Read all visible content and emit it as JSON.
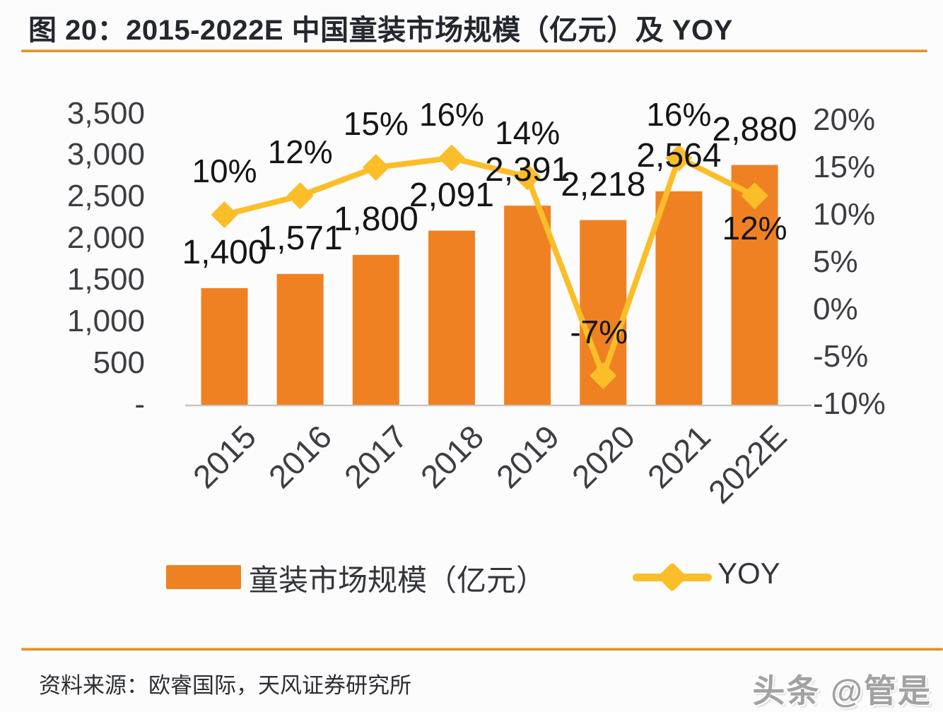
{
  "page": {
    "title": "图 20：2015-2022E 中国童装市场规模（亿元）及 YOY",
    "source": "资料来源：欧睿国际，天风证券研究所",
    "watermark": "头条 @管是"
  },
  "colors": {
    "bar": "#F08122",
    "line": "#FBBE28",
    "accent_rule": "#E0912C",
    "axis_text": "#3c3e42",
    "label_text": "#141517",
    "baseline": "#c6c6c6"
  },
  "chart_data": {
    "type": "bar",
    "subtype": "combo-bar-line-dual-axis",
    "title": "图 20：2015-2022E 中国童装市场规模（亿元）及 YOY",
    "categories": [
      "2015",
      "2016",
      "2017",
      "2018",
      "2019",
      "2020",
      "2021",
      "2022E"
    ],
    "series": [
      {
        "name": "童装市场规模（亿元）",
        "type": "bar",
        "axis": "left",
        "values": [
          1400,
          1571,
          1800,
          2091,
          2391,
          2218,
          2564,
          2880
        ],
        "labels": [
          "1,400",
          "1,571",
          "1,800",
          "2,091",
          "2,391",
          "2,218",
          "2,564",
          "2,880"
        ],
        "color": "#F08122"
      },
      {
        "name": "YOY",
        "type": "line",
        "axis": "right",
        "values": [
          10,
          12,
          15,
          16,
          14,
          -7,
          16,
          12
        ],
        "labels": [
          "10%",
          "12%",
          "15%",
          "16%",
          "14%",
          "-7%",
          "16%",
          "12%"
        ],
        "color": "#FBBE28",
        "marker": "diamond"
      }
    ],
    "left_axis": {
      "ticks": [
        "3,500",
        "3,000",
        "2,500",
        "2,000",
        "1,500",
        "1,000",
        "500",
        "-"
      ],
      "values": [
        3500,
        3000,
        2500,
        2000,
        1500,
        1000,
        500,
        0
      ],
      "min": 0,
      "max": 3500
    },
    "right_axis": {
      "ticks": [
        "20%",
        "15%",
        "10%",
        "5%",
        "0%",
        "-5%",
        "-10%"
      ],
      "values": [
        20,
        15,
        10,
        5,
        0,
        -5,
        -10
      ],
      "min": -10,
      "max": 20
    },
    "grid": false,
    "legend_position": "bottom",
    "legend": [
      {
        "label": "童装市场规模（亿元）",
        "swatch": "bar"
      },
      {
        "label": "YOY",
        "swatch": "line-diamond"
      }
    ]
  }
}
